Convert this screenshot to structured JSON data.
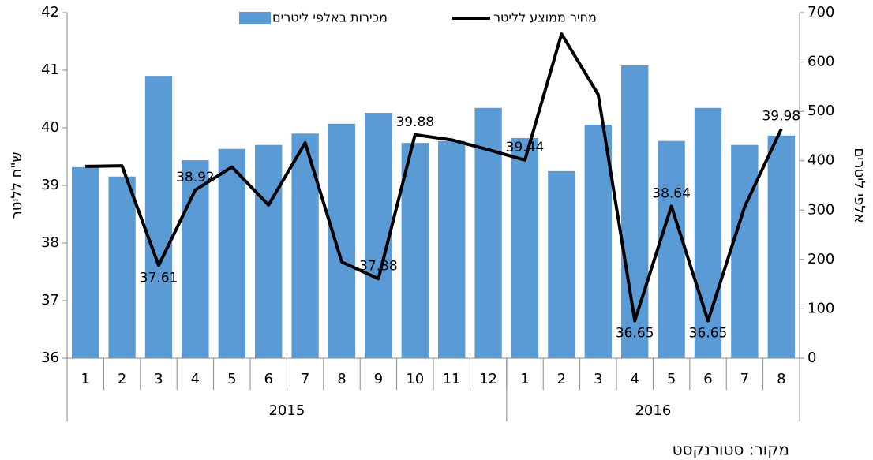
{
  "chart_data": {
    "type": "bar_line",
    "categories": [
      "1",
      "2",
      "3",
      "4",
      "5",
      "6",
      "7",
      "8",
      "9",
      "10",
      "11",
      "12",
      "1",
      "2",
      "3",
      "4",
      "5",
      "6",
      "7",
      "8"
    ],
    "groups": [
      {
        "label": "2015",
        "span": 12
      },
      {
        "label": "2016",
        "span": 8
      }
    ],
    "series": [
      {
        "name": "מכירות באלפי ליטרים",
        "type": "bar",
        "axis": "y2",
        "color": "#5b9bd5",
        "values": [
          387,
          368,
          572,
          401,
          424,
          432,
          455,
          475,
          497,
          436,
          440,
          507,
          446,
          379,
          473,
          593,
          440,
          507,
          432,
          451
        ]
      },
      {
        "name": "מחיר ממוצע לליטר",
        "type": "line",
        "axis": "y",
        "color": "#000000",
        "values": [
          39.33,
          39.34,
          37.61,
          38.92,
          39.32,
          38.66,
          39.74,
          37.67,
          37.38,
          39.88,
          39.79,
          39.62,
          39.44,
          41.63,
          40.58,
          36.65,
          38.64,
          36.65,
          38.63,
          39.98
        ],
        "value_labels": [
          null,
          null,
          "37.61",
          "38.92",
          null,
          null,
          null,
          null,
          "37.38",
          "39.88",
          null,
          null,
          "39.44",
          null,
          null,
          "36.65",
          "38.64",
          "36.65",
          null,
          "39.98"
        ]
      }
    ],
    "ylabel": "ש\"ח לליטר",
    "y2label": "אלפי ליטרים",
    "ylim": [
      36,
      42
    ],
    "yticks": [
      36,
      37,
      38,
      39,
      40,
      41,
      42
    ],
    "y2lim": [
      0,
      700
    ],
    "y2ticks": [
      0,
      100,
      200,
      300,
      400,
      500,
      600,
      700
    ],
    "legend": "top",
    "source": "מקור: סטורנקסט"
  }
}
